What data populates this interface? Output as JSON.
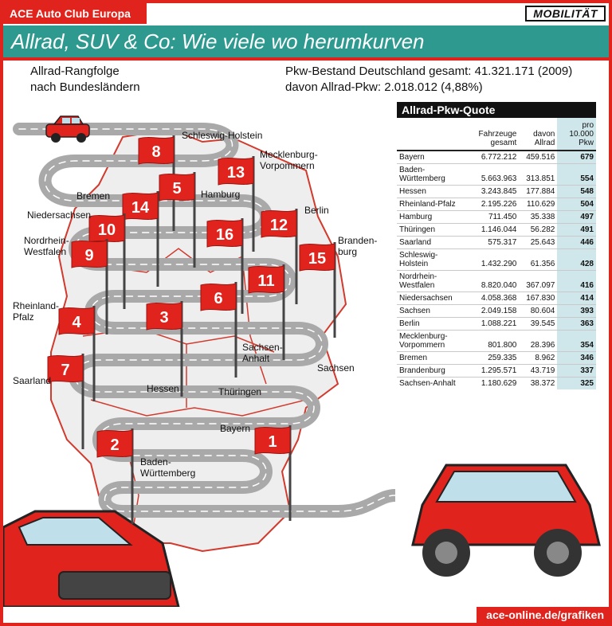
{
  "header": {
    "brand": "ACE Auto Club Europa",
    "section": "MOBILITÄT"
  },
  "title": "Allrad, SUV & Co: Wie viele wo herumkurven",
  "subtitle_left": [
    "Allrad-Rangfolge",
    "nach Bundesländern"
  ],
  "subtitle_right": [
    "Pkw-Bestand Deutschland gesamt: 41.321.171 (2009)",
    "davon Allrad-Pkw: 2.018.012 (4,88%)"
  ],
  "colors": {
    "accent": "#e0231c",
    "teal": "#2e9a8f",
    "quote_column": "#cfe6ea",
    "road": "#a9a9a9"
  },
  "map": {
    "flags": [
      {
        "rank": "8",
        "label": [
          "Schleswig-Holstein"
        ]
      },
      {
        "rank": "13",
        "label": [
          "Mecklenburg-",
          "Vorpommern"
        ]
      },
      {
        "rank": "5",
        "label": [
          "Hamburg"
        ]
      },
      {
        "rank": "14",
        "label": [
          "Bremen"
        ]
      },
      {
        "rank": "10",
        "label": [
          "Niedersachsen"
        ]
      },
      {
        "rank": "12",
        "label": [
          "Berlin"
        ]
      },
      {
        "rank": "16",
        "label": []
      },
      {
        "rank": "9",
        "label": [
          "Nordrhein-",
          "Westfalen"
        ]
      },
      {
        "rank": "15",
        "label": [
          "Branden-",
          "burg"
        ]
      },
      {
        "rank": "11",
        "label": []
      },
      {
        "rank": "6",
        "label": []
      },
      {
        "rank": "3",
        "label": []
      },
      {
        "rank": "4",
        "label": [
          "Rheinland-",
          "Pfalz"
        ]
      },
      {
        "rank": "7",
        "label": [
          "Saarland"
        ]
      },
      {
        "rank": "2",
        "label": []
      },
      {
        "rank": "1",
        "label": [
          "Bayern"
        ]
      }
    ],
    "place_labels": [
      "Hessen",
      "Thüringen",
      "Sachsen-",
      "Anhalt",
      "Sachsen",
      "Baden-",
      "Württemberg"
    ]
  },
  "chart_data": {
    "type": "table",
    "title": "Allrad-Pkw-Quote",
    "columns": [
      "",
      "Fahrzeuge gesamt",
      "davon Allrad",
      "pro 10.000 Pkw"
    ],
    "rows": [
      [
        "Bayern",
        "6.772.212",
        "459.516",
        "679"
      ],
      [
        "Baden-Württemberg",
        "5.663.963",
        "313.851",
        "554"
      ],
      [
        "Hessen",
        "3.243.845",
        "177.884",
        "548"
      ],
      [
        "Rheinland-Pfalz",
        "2.195.226",
        "110.629",
        "504"
      ],
      [
        "Hamburg",
        "711.450",
        "35.338",
        "497"
      ],
      [
        "Thüringen",
        "1.146.044",
        "56.282",
        "491"
      ],
      [
        "Saarland",
        "575.317",
        "25.643",
        "446"
      ],
      [
        "Schleswig-Holstein",
        "1.432.290",
        "61.356",
        "428"
      ],
      [
        "Nordrhein-Westfalen",
        "8.820.040",
        "367.097",
        "416"
      ],
      [
        "Niedersachsen",
        "4.058.368",
        "167.830",
        "414"
      ],
      [
        "Sachsen",
        "2.049.158",
        "80.604",
        "393"
      ],
      [
        "Berlin",
        "1.088.221",
        "39.545",
        "363"
      ],
      [
        "Mecklenburg-Vorpommern",
        "801.800",
        "28.396",
        "354"
      ],
      [
        "Bremen",
        "259.335",
        "8.962",
        "346"
      ],
      [
        "Brandenburg",
        "1.295.571",
        "43.719",
        "337"
      ],
      [
        "Sachsen-Anhalt",
        "1.180.629",
        "38.372",
        "325"
      ]
    ]
  },
  "footer": "ace-online.de/grafiken"
}
